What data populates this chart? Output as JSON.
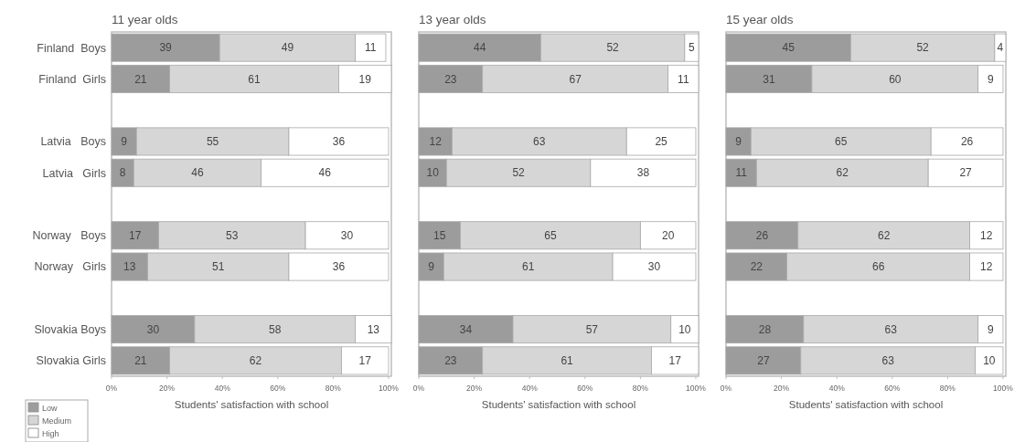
{
  "chart_data": [
    {
      "type": "bar",
      "orientation": "horizontal",
      "stacked": true,
      "title": "11 year olds",
      "xlabel": "Students' satisfaction with school",
      "categories": [
        "Finland  Boys",
        "Finland  Girls",
        null,
        "Latvia   Boys",
        "Latvia   Girls",
        null,
        "Norway   Boys",
        "Norway   Girls",
        null,
        "Slovakia Boys",
        "Slovakia Girls"
      ],
      "series": [
        {
          "name": "Low",
          "color": "#9c9c9c",
          "values": [
            39,
            21,
            null,
            9,
            8,
            null,
            17,
            13,
            null,
            30,
            21
          ]
        },
        {
          "name": "Medium",
          "color": "#d6d6d6",
          "values": [
            49,
            61,
            null,
            55,
            46,
            null,
            53,
            51,
            null,
            58,
            62
          ]
        },
        {
          "name": "High",
          "color": "#ffffff",
          "values": [
            11,
            19,
            null,
            36,
            46,
            null,
            30,
            36,
            null,
            13,
            17
          ]
        }
      ],
      "xlim": [
        0,
        101
      ],
      "xticks": [
        {
          "value": 0,
          "label": "0%"
        },
        {
          "value": 20,
          "label": "20%"
        },
        {
          "value": 40,
          "label": "40%"
        },
        {
          "value": 60,
          "label": "60%"
        },
        {
          "value": 80,
          "label": "80%"
        },
        {
          "value": 100,
          "label": "100%"
        }
      ],
      "data_labels": true,
      "legend": "bottom left"
    },
    {
      "type": "bar",
      "orientation": "horizontal",
      "stacked": true,
      "title": "13 year olds",
      "xlabel": "Students' satisfaction with school",
      "categories": [
        null,
        null,
        null,
        null,
        null,
        null,
        null,
        null,
        null,
        null,
        null
      ],
      "series": [
        {
          "color": "#9c9c9c",
          "values": [
            44,
            23,
            null,
            12,
            10,
            null,
            15,
            9,
            null,
            34,
            23
          ]
        },
        {
          "color": "#d6d6d6",
          "values": [
            52,
            67,
            null,
            63,
            52,
            null,
            65,
            61,
            null,
            57,
            61
          ]
        },
        {
          "color": "#ffffff",
          "values": [
            5,
            11,
            null,
            25,
            38,
            null,
            20,
            30,
            null,
            10,
            17
          ]
        }
      ],
      "xlim": [
        0,
        101
      ],
      "xticks": [
        {
          "value": 0,
          "label": "0%"
        },
        {
          "value": 20,
          "label": "20%"
        },
        {
          "value": 40,
          "label": "40%"
        },
        {
          "value": 60,
          "label": "60%"
        },
        {
          "value": 80,
          "label": "80%"
        },
        {
          "value": 100,
          "label": "100%"
        }
      ],
      "data_labels": true,
      "tick_labels": "x"
    },
    {
      "type": "bar",
      "orientation": "horizontal",
      "stacked": true,
      "title": "15 year olds",
      "xlabel": "Students' satisfaction with school",
      "categories": [
        null,
        null,
        null,
        null,
        null,
        null,
        null,
        null,
        null,
        null,
        null
      ],
      "series": [
        {
          "color": "#9c9c9c",
          "values": [
            45,
            31,
            null,
            9,
            11,
            null,
            26,
            22,
            null,
            28,
            27
          ]
        },
        {
          "color": "#d6d6d6",
          "values": [
            52,
            60,
            null,
            65,
            62,
            null,
            62,
            66,
            null,
            63,
            63
          ]
        },
        {
          "color": "#ffffff",
          "values": [
            4,
            9,
            null,
            26,
            27,
            null,
            12,
            12,
            null,
            9,
            10
          ]
        }
      ],
      "xlim": [
        0,
        101
      ],
      "xticks": [
        {
          "value": 0,
          "label": "0%"
        },
        {
          "value": 20,
          "label": "20%"
        },
        {
          "value": 40,
          "label": "40%"
        },
        {
          "value": 60,
          "label": "60%"
        },
        {
          "value": 80,
          "label": "80%"
        },
        {
          "value": 100,
          "label": "100%"
        }
      ],
      "data_labels": true,
      "tick_labels": "x"
    }
  ]
}
